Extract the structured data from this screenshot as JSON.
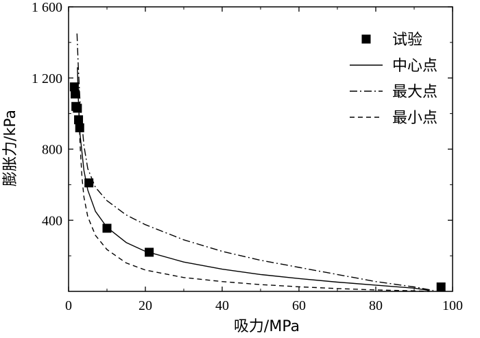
{
  "chart_data": {
    "type": "scatter",
    "xlabel": "吸力/MPa",
    "ylabel": "膨胀力/kPa",
    "xlim": [
      0,
      100
    ],
    "ylim": [
      0,
      1600
    ],
    "xticks": [
      0,
      20,
      40,
      60,
      80,
      100
    ],
    "xtick_labels": [
      "0",
      "20",
      "40",
      "60",
      "80",
      "100"
    ],
    "yticks": [
      400,
      800,
      1200,
      1600
    ],
    "ytick_labels": [
      "400",
      "800",
      "1 200",
      "1 600"
    ],
    "legend_position": "top-right",
    "series": [
      {
        "name": "试验",
        "kind": "scatter",
        "marker": "square",
        "color": "#000000",
        "points": [
          {
            "x": 1.5,
            "y": 1150
          },
          {
            "x": 1.7,
            "y": 1110
          },
          {
            "x": 1.9,
            "y": 1040
          },
          {
            "x": 2.3,
            "y": 1030
          },
          {
            "x": 2.6,
            "y": 965
          },
          {
            "x": 2.9,
            "y": 920
          },
          {
            "x": 5.3,
            "y": 610
          },
          {
            "x": 10,
            "y": 355
          },
          {
            "x": 21,
            "y": 220
          },
          {
            "x": 97,
            "y": 25
          }
        ]
      },
      {
        "name": "中心点",
        "kind": "line",
        "dash": "solid",
        "color": "#000000",
        "points": [
          {
            "x": 2.3,
            "y": 1260
          },
          {
            "x": 2.5,
            "y": 1100
          },
          {
            "x": 3,
            "y": 880
          },
          {
            "x": 4,
            "y": 680
          },
          {
            "x": 5,
            "y": 570
          },
          {
            "x": 7,
            "y": 450
          },
          {
            "x": 10,
            "y": 360
          },
          {
            "x": 15,
            "y": 275
          },
          {
            "x": 20,
            "y": 225
          },
          {
            "x": 30,
            "y": 165
          },
          {
            "x": 40,
            "y": 125
          },
          {
            "x": 50,
            "y": 95
          },
          {
            "x": 60,
            "y": 72
          },
          {
            "x": 70,
            "y": 52
          },
          {
            "x": 80,
            "y": 35
          },
          {
            "x": 90,
            "y": 18
          },
          {
            "x": 94,
            "y": 5
          }
        ]
      },
      {
        "name": "最大点",
        "kind": "line",
        "dash": "dashdot",
        "color": "#000000",
        "points": [
          {
            "x": 2.2,
            "y": 1450
          },
          {
            "x": 2.5,
            "y": 1280
          },
          {
            "x": 3,
            "y": 1060
          },
          {
            "x": 4,
            "y": 820
          },
          {
            "x": 5,
            "y": 690
          },
          {
            "x": 7,
            "y": 585
          },
          {
            "x": 10,
            "y": 510
          },
          {
            "x": 15,
            "y": 430
          },
          {
            "x": 20,
            "y": 375
          },
          {
            "x": 30,
            "y": 290
          },
          {
            "x": 40,
            "y": 225
          },
          {
            "x": 50,
            "y": 175
          },
          {
            "x": 60,
            "y": 135
          },
          {
            "x": 70,
            "y": 95
          },
          {
            "x": 80,
            "y": 55
          },
          {
            "x": 90,
            "y": 25
          },
          {
            "x": 95,
            "y": 5
          }
        ]
      },
      {
        "name": "最小点",
        "kind": "line",
        "dash": "dashed",
        "color": "#000000",
        "points": [
          {
            "x": 2.7,
            "y": 1000
          },
          {
            "x": 3,
            "y": 820
          },
          {
            "x": 3.5,
            "y": 640
          },
          {
            "x": 4,
            "y": 530
          },
          {
            "x": 5,
            "y": 420
          },
          {
            "x": 7,
            "y": 315
          },
          {
            "x": 10,
            "y": 235
          },
          {
            "x": 15,
            "y": 160
          },
          {
            "x": 20,
            "y": 120
          },
          {
            "x": 30,
            "y": 78
          },
          {
            "x": 40,
            "y": 55
          },
          {
            "x": 50,
            "y": 38
          },
          {
            "x": 60,
            "y": 26
          },
          {
            "x": 70,
            "y": 16
          },
          {
            "x": 80,
            "y": 8
          },
          {
            "x": 90,
            "y": 3
          },
          {
            "x": 94,
            "y": 0
          }
        ]
      }
    ]
  }
}
